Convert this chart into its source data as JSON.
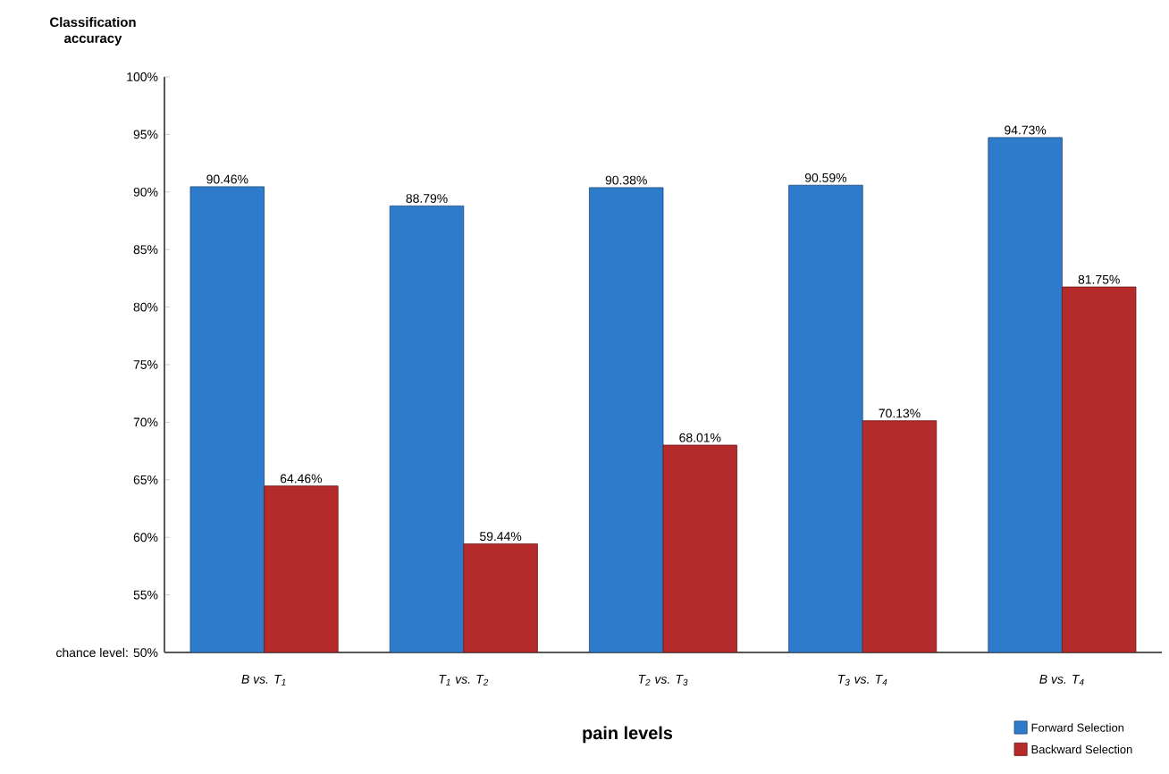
{
  "chart_data": {
    "type": "bar",
    "ylabel": "Classification accuracy",
    "xlabel": "pain levels",
    "categories": [
      "B vs. T$_{1}$",
      "T$_{1}$ vs. T$_{2}$",
      "T$_{2}$ vs. T$_{3}$",
      "T$_{3}$ vs. T$_{4}$",
      "B vs. T$_{4}$"
    ],
    "series": [
      {
        "name": "Forward Selection",
        "color": "#2e7bcc",
        "values": [
          90.46,
          88.79,
          90.38,
          90.59,
          94.73
        ],
        "value_labels": [
          "90.46%",
          "88.79%",
          "90.38%",
          "90.59%",
          "94.73%"
        ]
      },
      {
        "name": "Backward Selection",
        "color": "#b52a2a",
        "values": [
          64.46,
          59.44,
          68.01,
          70.13,
          81.75
        ],
        "value_labels": [
          "64.46%",
          "59.44%",
          "68.01%",
          "70.13%",
          "81.75%"
        ]
      }
    ],
    "ylim": [
      50,
      100
    ],
    "yticks": [
      {
        "value": 50,
        "label": "chance level: 50%"
      },
      {
        "value": 55,
        "label": "55%"
      },
      {
        "value": 60,
        "label": "60%"
      },
      {
        "value": 65,
        "label": "65%"
      },
      {
        "value": 70,
        "label": "70%"
      },
      {
        "value": 75,
        "label": "75%"
      },
      {
        "value": 80,
        "label": "80%"
      },
      {
        "value": 85,
        "label": "85%"
      },
      {
        "value": 90,
        "label": "90%"
      },
      {
        "value": 95,
        "label": "95%"
      },
      {
        "value": 100,
        "label": "100%"
      }
    ],
    "grid": false,
    "legend": "bottom right"
  }
}
